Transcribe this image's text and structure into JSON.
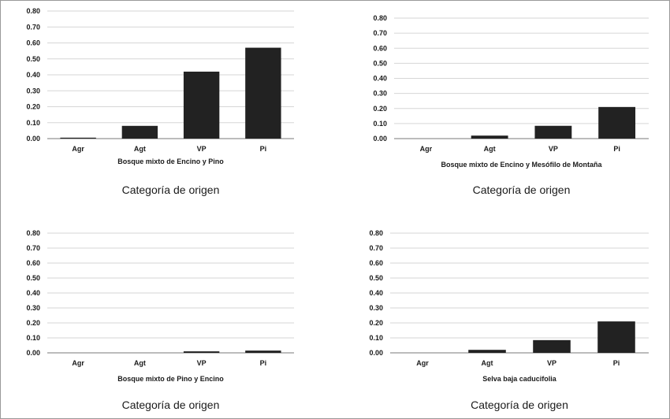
{
  "chart_data": [
    {
      "type": "bar",
      "categories": [
        "Agr",
        "Agt",
        "VP",
        "Pi"
      ],
      "values": [
        0.005,
        0.08,
        0.42,
        0.57
      ],
      "xlabel": "Bosque mixto de Encino y Pino",
      "footer": "Categoría de origen",
      "ylim": [
        0,
        0.8
      ],
      "yticks": [
        "0.00",
        "0.10",
        "0.20",
        "0.30",
        "0.40",
        "0.50",
        "0.60",
        "0.70",
        "0.80"
      ],
      "grid": true,
      "color": "#222222"
    },
    {
      "type": "bar",
      "categories": [
        "Agr",
        "Agt",
        "VP",
        "Pi"
      ],
      "values": [
        0.0,
        0.02,
        0.085,
        0.21
      ],
      "xlabel": "Bosque mixto de Encino y Mesófilo de Montaña",
      "footer": "Categoría de origen",
      "ylim": [
        0,
        0.8
      ],
      "yticks": [
        "0.00",
        "0.10",
        "0.20",
        "0.30",
        "0.40",
        "0.50",
        "0.60",
        "0.70",
        "0.80"
      ],
      "grid": true,
      "color": "#222222"
    },
    {
      "type": "bar",
      "categories": [
        "Agr",
        "Agt",
        "VP",
        "Pi"
      ],
      "values": [
        0.0,
        0.0,
        0.01,
        0.015
      ],
      "xlabel": "Bosque mixto de Pino y Encino",
      "footer": "Categoría de origen",
      "ylim": [
        0,
        0.8
      ],
      "yticks": [
        "0.00",
        "0.10",
        "0.20",
        "0.30",
        "0.40",
        "0.50",
        "0.60",
        "0.70",
        "0.80"
      ],
      "grid": true,
      "color": "#222222"
    },
    {
      "type": "bar",
      "categories": [
        "Agr",
        "Agt",
        "VP",
        "Pi"
      ],
      "values": [
        0.0,
        0.02,
        0.085,
        0.21
      ],
      "xlabel": "Selva baja caducifolia",
      "footer": "Categoría de origen",
      "ylim": [
        0,
        0.8
      ],
      "yticks": [
        "0.00",
        "0.10",
        "0.20",
        "0.30",
        "0.40",
        "0.50",
        "0.60",
        "0.70",
        "0.80"
      ],
      "grid": true,
      "color": "#222222"
    }
  ]
}
